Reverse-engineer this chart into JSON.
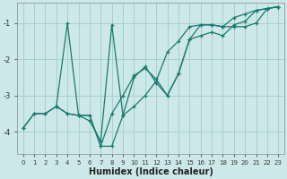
{
  "xlabel": "Humidex (Indice chaleur)",
  "bg_color": "#cce8e8",
  "grid_color": "#aacfcf",
  "line_color": "#1a7a6e",
  "xlim": [
    -0.5,
    23.5
  ],
  "ylim": [
    -4.6,
    -0.45
  ],
  "yticks": [
    -4,
    -3,
    -2,
    -1
  ],
  "xticks": [
    0,
    1,
    2,
    3,
    4,
    5,
    6,
    7,
    8,
    9,
    10,
    11,
    12,
    13,
    14,
    15,
    16,
    17,
    18,
    19,
    20,
    21,
    22,
    23
  ],
  "line1_x": [
    0,
    1,
    2,
    3,
    4,
    5,
    6,
    7,
    8,
    9,
    10,
    11,
    12,
    13,
    14,
    15,
    16,
    17,
    18,
    19,
    20,
    21,
    22,
    23
  ],
  "line1_y": [
    -3.9,
    -3.5,
    -3.5,
    -3.3,
    -3.5,
    -3.55,
    -3.55,
    -4.4,
    -4.4,
    -3.55,
    -3.3,
    -3.0,
    -2.6,
    -1.8,
    -1.5,
    -1.1,
    -1.05,
    -1.05,
    -1.1,
    -0.85,
    -0.75,
    -0.65,
    -0.6,
    -0.55
  ],
  "line2_x": [
    0,
    1,
    2,
    3,
    4,
    5,
    6,
    7,
    8,
    9,
    10,
    11,
    12,
    13,
    14,
    15,
    16,
    17,
    18,
    19,
    20,
    21,
    22,
    23
  ],
  "line2_y": [
    -3.9,
    -3.5,
    -3.5,
    -3.3,
    -3.5,
    -3.55,
    -3.55,
    -4.4,
    -3.5,
    -3.0,
    -2.45,
    -2.25,
    -2.55,
    -3.0,
    -2.4,
    -1.45,
    -1.35,
    -1.25,
    -1.35,
    -1.05,
    -0.95,
    -0.65,
    -0.6,
    -0.55
  ],
  "line3_x": [
    3,
    4,
    5,
    6,
    7,
    8,
    9,
    10,
    11,
    12,
    13,
    14,
    15,
    16,
    17,
    18,
    19,
    20,
    21,
    22,
    23
  ],
  "line3_y": [
    -3.3,
    -1.0,
    -3.55,
    -3.7,
    -4.25,
    -1.05,
    -3.55,
    -2.5,
    -2.2,
    -2.65,
    -3.0,
    -2.4,
    -1.45,
    -1.05,
    -1.05,
    -1.1,
    -1.1,
    -1.1,
    -1.0,
    -0.6,
    -0.55
  ]
}
